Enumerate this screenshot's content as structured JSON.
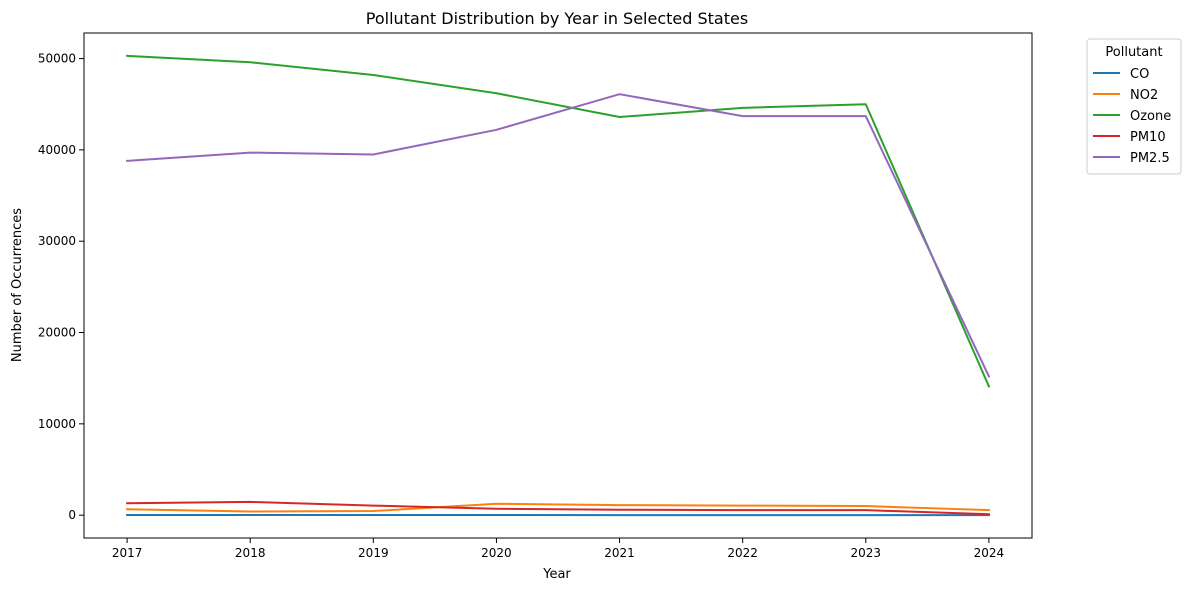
{
  "chart_data": {
    "type": "line",
    "title": "Pollutant Distribution by Year in Selected States",
    "xlabel": "Year",
    "ylabel": "Number of Occurrences",
    "x": [
      2017,
      2018,
      2019,
      2020,
      2021,
      2022,
      2023,
      2024
    ],
    "xlim": [
      2016.65,
      2024.35
    ],
    "ylim": [
      -2500,
      52800
    ],
    "yticks": [
      0,
      10000,
      20000,
      30000,
      40000,
      50000
    ],
    "grid": false,
    "legend": {
      "title": "Pollutant",
      "placement": "outside-top-right"
    },
    "series": [
      {
        "name": "CO",
        "color": "#1f77b4",
        "values": [
          20,
          15,
          15,
          15,
          10,
          10,
          10,
          5
        ]
      },
      {
        "name": "NO2",
        "color": "#ff7f0e",
        "values": [
          650,
          400,
          450,
          1250,
          1100,
          1050,
          1000,
          550
        ]
      },
      {
        "name": "Ozone",
        "color": "#2ca02c",
        "values": [
          50300,
          49600,
          48200,
          46200,
          43600,
          44600,
          45000,
          14100
        ]
      },
      {
        "name": "PM10",
        "color": "#d62728",
        "values": [
          1300,
          1450,
          1050,
          700,
          600,
          550,
          550,
          100
        ]
      },
      {
        "name": "PM2.5",
        "color": "#9467bd",
        "values": [
          38800,
          39700,
          39500,
          42200,
          46100,
          43700,
          43700,
          15200
        ]
      }
    ]
  }
}
